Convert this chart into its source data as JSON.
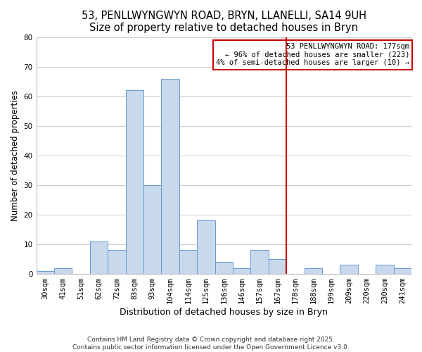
{
  "title": "53, PENLLWYNGWYN ROAD, BRYN, LLANELLI, SA14 9UH",
  "subtitle": "Size of property relative to detached houses in Bryn",
  "xlabel": "Distribution of detached houses by size in Bryn",
  "ylabel": "Number of detached properties",
  "bar_labels": [
    "30sqm",
    "41sqm",
    "51sqm",
    "62sqm",
    "72sqm",
    "83sqm",
    "93sqm",
    "104sqm",
    "114sqm",
    "125sqm",
    "136sqm",
    "146sqm",
    "157sqm",
    "167sqm",
    "178sqm",
    "188sqm",
    "199sqm",
    "209sqm",
    "220sqm",
    "230sqm",
    "241sqm"
  ],
  "bar_heights": [
    1,
    2,
    0,
    11,
    8,
    62,
    30,
    66,
    8,
    18,
    4,
    2,
    8,
    5,
    0,
    2,
    0,
    3,
    0,
    3,
    2
  ],
  "bar_color": "#c8d9ee",
  "bar_edge_color": "#6699cc",
  "vline_x_index": 14,
  "vline_color": "#cc0000",
  "annotation_title": "53 PENLLWYNGWYN ROAD: 177sqm",
  "annotation_line1": "← 96% of detached houses are smaller (223)",
  "annotation_line2": "4% of semi-detached houses are larger (10) →",
  "annotation_box_color": "#ffffff",
  "annotation_box_edge": "#cc0000",
  "ylim": [
    0,
    80
  ],
  "yticks": [
    0,
    10,
    20,
    30,
    40,
    50,
    60,
    70,
    80
  ],
  "grid_color": "#cccccc",
  "footnote1": "Contains HM Land Registry data © Crown copyright and database right 2025.",
  "footnote2": "Contains public sector information licensed under the Open Government Licence v3.0.",
  "background_color": "#ffffff",
  "title_fontsize": 10.5,
  "subtitle_fontsize": 9.5,
  "xlabel_fontsize": 9,
  "ylabel_fontsize": 8.5,
  "tick_fontsize": 7.5,
  "annotation_fontsize": 7.5,
  "footnote_fontsize": 6.5
}
